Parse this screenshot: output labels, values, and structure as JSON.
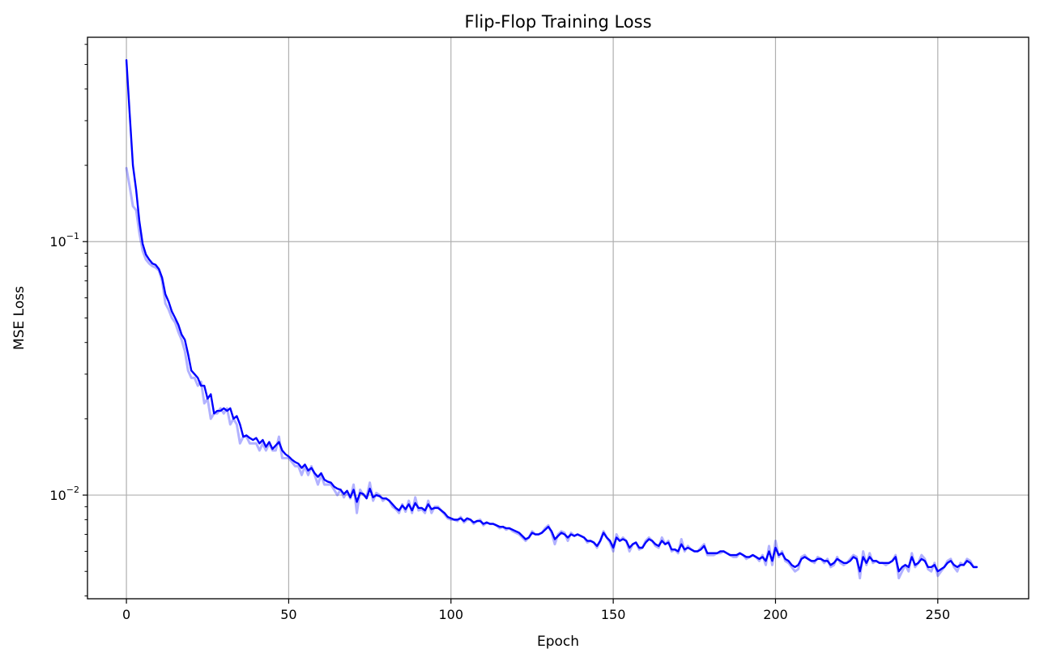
{
  "chart_data": {
    "type": "line",
    "title": "Flip-Flop Training Loss",
    "xlabel": "Epoch",
    "ylabel": "MSE Loss",
    "yscale": "log",
    "xlim": [
      -12,
      278
    ],
    "ylim": [
      0.0039,
      0.64
    ],
    "grid": true,
    "x_ticks": [
      0,
      50,
      100,
      150,
      200,
      250
    ],
    "y_ticks": [
      {
        "value": 0.1,
        "base": "10",
        "exp": "−1"
      },
      {
        "value": 0.01,
        "base": "10",
        "exp": "−2"
      }
    ],
    "colors": {
      "smoothed": "#0000ff",
      "raw": "#0000ff",
      "raw_opacity": 0.3,
      "grid": "#b0b0b0"
    },
    "series": [
      {
        "role": "raw",
        "x_start": 0,
        "x_step": 1,
        "values": [
          0.195,
          0.165,
          0.138,
          0.133,
          0.108,
          0.092,
          0.085,
          0.082,
          0.08,
          0.079,
          0.077,
          0.07,
          0.057,
          0.054,
          0.05,
          0.048,
          0.044,
          0.041,
          0.037,
          0.031,
          0.029,
          0.029,
          0.027,
          0.028,
          0.023,
          0.024,
          0.02,
          0.021,
          0.021,
          0.022,
          0.021,
          0.022,
          0.019,
          0.02,
          0.019,
          0.016,
          0.017,
          0.017,
          0.016,
          0.016,
          0.016,
          0.015,
          0.016,
          0.015,
          0.016,
          0.015,
          0.015,
          0.017,
          0.014,
          0.014,
          0.014,
          0.0135,
          0.013,
          0.013,
          0.012,
          0.013,
          0.012,
          0.013,
          0.012,
          0.011,
          0.012,
          0.011,
          0.011,
          0.011,
          0.0105,
          0.01,
          0.0105,
          0.0098,
          0.0103,
          0.0097,
          0.011,
          0.0085,
          0.0105,
          0.01,
          0.0098,
          0.0112,
          0.0095,
          0.0102,
          0.01,
          0.0095,
          0.0097,
          0.0095,
          0.009,
          0.0088,
          0.0085,
          0.0092,
          0.0086,
          0.0095,
          0.0085,
          0.0098,
          0.0087,
          0.0088,
          0.0085,
          0.0095,
          0.0085,
          0.009,
          0.009,
          0.0087,
          0.0084,
          0.0081,
          0.008,
          0.008,
          0.0079,
          0.0082,
          0.0078,
          0.008,
          0.008,
          0.0077,
          0.0079,
          0.008,
          0.0076,
          0.0078,
          0.0077,
          0.0077,
          0.0076,
          0.0074,
          0.0075,
          0.0073,
          0.0074,
          0.0072,
          0.0071,
          0.007,
          0.0068,
          0.0066,
          0.0068,
          0.0072,
          0.007,
          0.007,
          0.0071,
          0.0074,
          0.0076,
          0.0071,
          0.0064,
          0.007,
          0.0072,
          0.0071,
          0.0066,
          0.0071,
          0.0069,
          0.007,
          0.0069,
          0.0068,
          0.0065,
          0.0066,
          0.0065,
          0.0062,
          0.0066,
          0.0072,
          0.0068,
          0.0065,
          0.006,
          0.007,
          0.0066,
          0.0068,
          0.0066,
          0.006,
          0.0064,
          0.0065,
          0.0061,
          0.0062,
          0.0066,
          0.0068,
          0.0066,
          0.0063,
          0.0062,
          0.0068,
          0.0064,
          0.0066,
          0.006,
          0.0061,
          0.0059,
          0.0067,
          0.006,
          0.0063,
          0.0061,
          0.006,
          0.006,
          0.0062,
          0.0064,
          0.0058,
          0.0058,
          0.0058,
          0.0059,
          0.0059,
          0.006,
          0.0059,
          0.0058,
          0.0057,
          0.0057,
          0.0059,
          0.0058,
          0.0056,
          0.0057,
          0.0058,
          0.0057,
          0.0055,
          0.0058,
          0.0053,
          0.0063,
          0.0053,
          0.0066,
          0.0057,
          0.006,
          0.0055,
          0.0054,
          0.0052,
          0.005,
          0.0051,
          0.0057,
          0.0058,
          0.0056,
          0.0055,
          0.0054,
          0.0057,
          0.0056,
          0.0054,
          0.0056,
          0.0052,
          0.0053,
          0.0057,
          0.0054,
          0.0053,
          0.0054,
          0.0056,
          0.0058,
          0.0057,
          0.0047,
          0.006,
          0.0053,
          0.0059,
          0.0054,
          0.0055,
          0.0054,
          0.0054,
          0.0053,
          0.0054,
          0.0055,
          0.0058,
          0.0047,
          0.005,
          0.0053,
          0.005,
          0.0059,
          0.0052,
          0.0054,
          0.0058,
          0.0056,
          0.0051,
          0.005,
          0.0054,
          0.0048,
          0.005,
          0.0052,
          0.0055,
          0.0056,
          0.0052,
          0.005,
          0.0054,
          0.0053,
          0.0056,
          0.0055,
          0.0052,
          0.0052
        ]
      },
      {
        "role": "smoothed",
        "x_start": 0,
        "x_step": 1,
        "values": [
          0.52,
          0.32,
          0.2,
          0.16,
          0.12,
          0.098,
          0.089,
          0.085,
          0.082,
          0.081,
          0.078,
          0.072,
          0.062,
          0.058,
          0.053,
          0.05,
          0.047,
          0.043,
          0.041,
          0.036,
          0.031,
          0.03,
          0.029,
          0.027,
          0.027,
          0.024,
          0.025,
          0.021,
          0.0215,
          0.0215,
          0.022,
          0.0215,
          0.022,
          0.02,
          0.0205,
          0.019,
          0.017,
          0.0172,
          0.0168,
          0.0165,
          0.0168,
          0.016,
          0.0165,
          0.0155,
          0.0162,
          0.0152,
          0.0157,
          0.0162,
          0.015,
          0.0145,
          0.0142,
          0.0138,
          0.0135,
          0.0133,
          0.0128,
          0.0132,
          0.0125,
          0.0128,
          0.0122,
          0.0118,
          0.0122,
          0.0115,
          0.0113,
          0.0112,
          0.0108,
          0.0106,
          0.0105,
          0.0101,
          0.0104,
          0.0098,
          0.0105,
          0.0094,
          0.0102,
          0.0101,
          0.0097,
          0.0106,
          0.0098,
          0.01,
          0.0099,
          0.0097,
          0.0097,
          0.0095,
          0.0092,
          0.0089,
          0.0087,
          0.0091,
          0.0088,
          0.0092,
          0.0087,
          0.0093,
          0.0089,
          0.0089,
          0.0087,
          0.0092,
          0.0088,
          0.0089,
          0.0089,
          0.0087,
          0.0085,
          0.0082,
          0.0081,
          0.008,
          0.008,
          0.0081,
          0.0079,
          0.0081,
          0.008,
          0.0078,
          0.0079,
          0.0079,
          0.0077,
          0.0078,
          0.0077,
          0.0077,
          0.0076,
          0.0075,
          0.0075,
          0.0074,
          0.0074,
          0.0073,
          0.0072,
          0.0071,
          0.0069,
          0.0067,
          0.0068,
          0.0071,
          0.007,
          0.007,
          0.0071,
          0.0073,
          0.0075,
          0.0072,
          0.0067,
          0.0069,
          0.0071,
          0.007,
          0.0068,
          0.007,
          0.0069,
          0.007,
          0.0069,
          0.0068,
          0.0066,
          0.0066,
          0.0065,
          0.0063,
          0.0066,
          0.0071,
          0.0068,
          0.0066,
          0.0062,
          0.0068,
          0.0066,
          0.0067,
          0.0066,
          0.0062,
          0.0064,
          0.0065,
          0.0062,
          0.0062,
          0.0065,
          0.0067,
          0.0066,
          0.0064,
          0.0063,
          0.0066,
          0.0064,
          0.0065,
          0.0061,
          0.0061,
          0.006,
          0.0064,
          0.0061,
          0.0062,
          0.0061,
          0.006,
          0.006,
          0.0061,
          0.0063,
          0.0059,
          0.0059,
          0.0059,
          0.0059,
          0.006,
          0.006,
          0.0059,
          0.0058,
          0.0058,
          0.0058,
          0.0059,
          0.0058,
          0.0057,
          0.0057,
          0.0058,
          0.0057,
          0.0056,
          0.0057,
          0.0055,
          0.006,
          0.0055,
          0.0062,
          0.0058,
          0.0059,
          0.0056,
          0.0055,
          0.0053,
          0.0052,
          0.0053,
          0.0056,
          0.0057,
          0.0056,
          0.0055,
          0.0055,
          0.0056,
          0.0056,
          0.0055,
          0.0055,
          0.0053,
          0.0054,
          0.0056,
          0.0055,
          0.0054,
          0.0054,
          0.0055,
          0.0057,
          0.0056,
          0.005,
          0.0057,
          0.0054,
          0.0057,
          0.0055,
          0.0055,
          0.0054,
          0.0054,
          0.0054,
          0.0054,
          0.0055,
          0.0057,
          0.005,
          0.0052,
          0.0053,
          0.0052,
          0.0057,
          0.0053,
          0.0054,
          0.0056,
          0.0055,
          0.0052,
          0.0052,
          0.0053,
          0.005,
          0.0051,
          0.0052,
          0.0054,
          0.0055,
          0.0053,
          0.0052,
          0.0053,
          0.0053,
          0.0055,
          0.0054,
          0.0052,
          0.0052
        ]
      }
    ]
  }
}
